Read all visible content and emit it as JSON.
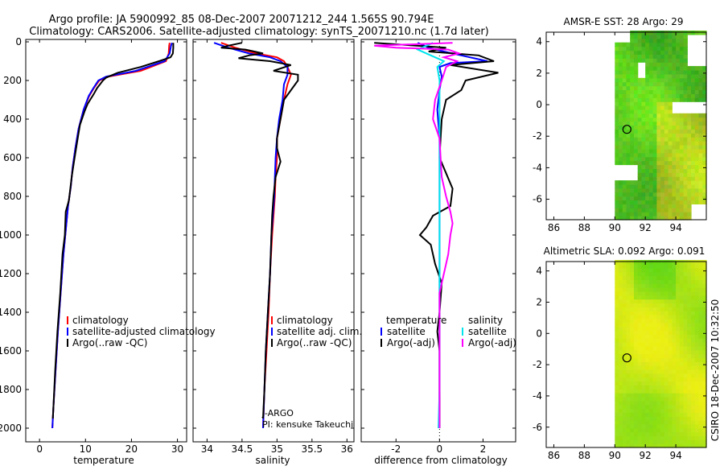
{
  "header": {
    "line1": "Argo profile: JA 5900992_85 08-Dec-2007 20071212_244 1.565S 90.794E",
    "line2": "Climatology: CARS2006. Satellite-adjusted climatology: synTS_20071210.nc (1.7d later)"
  },
  "colors": {
    "climatology": "#ff0000",
    "satellite": "#0000ff",
    "argo": "#000000",
    "sal_satellite": "#00e5ee",
    "sal_argo": "#ff00ff"
  },
  "chart_data": [
    {
      "type": "line",
      "id": "temperature",
      "xlabel": "temperature",
      "xlim": [
        -3,
        32
      ],
      "ylim": [
        0,
        2050
      ],
      "xticks": [
        0,
        10,
        20,
        30
      ],
      "yticks": [
        0,
        200,
        400,
        600,
        800,
        1000,
        1200,
        1400,
        1600,
        1800,
        2000
      ],
      "legend": [
        "climatology",
        "satellite-adjusted climatology",
        "Argo(..raw -QC)"
      ],
      "legend_colors": [
        "#ff0000",
        "#0000ff",
        "#000000"
      ],
      "series": [
        {
          "name": "climatology",
          "color": "#ff0000",
          "points": [
            [
              28.3,
              5
            ],
            [
              28.2,
              20
            ],
            [
              28.1,
              60
            ],
            [
              27.5,
              100
            ],
            [
              22,
              150
            ],
            [
              15,
              180
            ],
            [
              13,
              200
            ],
            [
              11.8,
              240
            ],
            [
              10.8,
              280
            ],
            [
              9.6,
              350
            ],
            [
              8.5,
              450
            ],
            [
              7.8,
              550
            ],
            [
              7.2,
              650
            ],
            [
              6.8,
              750
            ],
            [
              6.2,
              850
            ],
            [
              5.8,
              950
            ],
            [
              5.2,
              1100
            ],
            [
              4.6,
              1300
            ],
            [
              4.0,
              1500
            ],
            [
              3.5,
              1700
            ],
            [
              3.0,
              1900
            ],
            [
              2.8,
              2000
            ]
          ]
        },
        {
          "name": "satellite-adjusted climatology",
          "color": "#0000ff",
          "points": [
            [
              28.8,
              5
            ],
            [
              28.6,
              20
            ],
            [
              28.3,
              60
            ],
            [
              27.2,
              100
            ],
            [
              21,
              150
            ],
            [
              14.5,
              180
            ],
            [
              12.8,
              200
            ],
            [
              11.7,
              240
            ],
            [
              10.7,
              280
            ],
            [
              9.6,
              350
            ],
            [
              8.5,
              450
            ],
            [
              7.8,
              550
            ],
            [
              7.2,
              650
            ],
            [
              6.8,
              750
            ],
            [
              6.2,
              850
            ],
            [
              5.8,
              950
            ],
            [
              5.2,
              1100
            ],
            [
              4.6,
              1300
            ],
            [
              4.0,
              1500
            ],
            [
              3.5,
              1700
            ],
            [
              3.0,
              1900
            ],
            [
              2.8,
              2000
            ]
          ]
        },
        {
          "name": "Argo(..raw -QC)",
          "color": "#000000",
          "points": [
            [
              29.1,
              5
            ],
            [
              29.1,
              30
            ],
            [
              29.0,
              60
            ],
            [
              28.5,
              80
            ],
            [
              26,
              100
            ],
            [
              22,
              130
            ],
            [
              17,
              160
            ],
            [
              14.5,
              185
            ],
            [
              13.8,
              200
            ],
            [
              12.5,
              240
            ],
            [
              11.8,
              270
            ],
            [
              10.5,
              320
            ],
            [
              9.8,
              360
            ],
            [
              8.8,
              430
            ],
            [
              8.3,
              500
            ],
            [
              7.5,
              620
            ],
            [
              7.0,
              700
            ],
            [
              6.4,
              820
            ],
            [
              5.7,
              880
            ],
            [
              5.5,
              1000
            ],
            [
              5.0,
              1100
            ],
            [
              4.5,
              1300
            ],
            [
              3.9,
              1500
            ],
            [
              3.4,
              1700
            ],
            [
              3.0,
              1900
            ],
            [
              2.9,
              1950
            ]
          ]
        }
      ]
    },
    {
      "type": "line",
      "id": "salinity",
      "xlabel": "salinity",
      "xlim": [
        33.8,
        36.1
      ],
      "ylim": [
        0,
        2050
      ],
      "xticks": [
        34,
        34.5,
        35,
        35.5,
        36
      ],
      "xtick_labels": [
        "34",
        "34.5",
        "35",
        "35.5",
        "36"
      ],
      "legend": [
        "climatology",
        "satellite adj. clim.",
        "Argo(..raw -QC)"
      ],
      "legend_colors": [
        "#ff0000",
        "#0000ff",
        "#000000"
      ],
      "annotations": [
        "J-ARGO",
        "PI: kensuke Takeuchi"
      ],
      "series": [
        {
          "name": "climatology",
          "color": "#ff0000",
          "points": [
            [
              34.2,
              5
            ],
            [
              34.4,
              30
            ],
            [
              34.7,
              60
            ],
            [
              35.0,
              80
            ],
            [
              35.1,
              100
            ],
            [
              35.15,
              130
            ],
            [
              35.2,
              170
            ],
            [
              35.15,
              220
            ],
            [
              35.1,
              300
            ],
            [
              35.05,
              400
            ],
            [
              35.0,
              500
            ],
            [
              35.0,
              600
            ],
            [
              34.98,
              700
            ],
            [
              34.97,
              800
            ],
            [
              34.95,
              900
            ],
            [
              34.93,
              1000
            ],
            [
              34.9,
              1200
            ],
            [
              34.88,
              1400
            ],
            [
              34.85,
              1600
            ],
            [
              34.82,
              1800
            ],
            [
              34.8,
              2000
            ]
          ]
        },
        {
          "name": "satellite adj. clim.",
          "color": "#0000ff",
          "points": [
            [
              34.1,
              5
            ],
            [
              34.3,
              30
            ],
            [
              34.6,
              60
            ],
            [
              34.9,
              80
            ],
            [
              35.05,
              100
            ],
            [
              35.15,
              130
            ],
            [
              35.15,
              170
            ],
            [
              35.1,
              220
            ],
            [
              35.08,
              300
            ],
            [
              35.03,
              400
            ],
            [
              35.0,
              500
            ],
            [
              34.98,
              600
            ],
            [
              34.97,
              700
            ],
            [
              34.96,
              800
            ],
            [
              34.94,
              900
            ],
            [
              34.92,
              1000
            ],
            [
              34.9,
              1200
            ],
            [
              34.87,
              1400
            ],
            [
              34.84,
              1600
            ],
            [
              34.82,
              1800
            ],
            [
              34.8,
              2000
            ]
          ]
        },
        {
          "name": "Argo(..raw -QC)",
          "color": "#000000",
          "points": [
            [
              34.5,
              5
            ],
            [
              34.3,
              20
            ],
            [
              34.2,
              30
            ],
            [
              34.55,
              40
            ],
            [
              34.8,
              60
            ],
            [
              34.6,
              70
            ],
            [
              34.45,
              85
            ],
            [
              34.9,
              100
            ],
            [
              35.2,
              120
            ],
            [
              34.95,
              150
            ],
            [
              35.3,
              170
            ],
            [
              35.3,
              200
            ],
            [
              35.2,
              250
            ],
            [
              35.1,
              300
            ],
            [
              35.05,
              400
            ],
            [
              35.0,
              500
            ],
            [
              35.0,
              550
            ],
            [
              35.05,
              620
            ],
            [
              34.98,
              700
            ],
            [
              34.95,
              800
            ],
            [
              34.93,
              900
            ],
            [
              34.92,
              1000
            ],
            [
              34.9,
              1200
            ],
            [
              34.87,
              1400
            ],
            [
              34.84,
              1600
            ],
            [
              34.82,
              1800
            ],
            [
              34.8,
              1950
            ]
          ]
        }
      ]
    },
    {
      "type": "line",
      "id": "difference",
      "xlabel": "difference from climatology",
      "xlim": [
        -3.6,
        3.5
      ],
      "ylim": [
        0,
        2050
      ],
      "xticks": [
        -2,
        0,
        2
      ],
      "legend_temperature_title": "temperature",
      "legend_temperature": [
        "satellite",
        "Argo(-adj)"
      ],
      "legend_temperature_colors": [
        "#0000ff",
        "#000000"
      ],
      "legend_salinity_title": "salinity",
      "legend_salinity": [
        "satellite",
        "Argo(-adj)"
      ],
      "legend_salinity_colors": [
        "#00e5ee",
        "#ff00ff"
      ],
      "series": [
        {
          "name": "temperature satellite",
          "color": "#0000ff",
          "points": [
            [
              -1.0,
              5
            ],
            [
              -0.5,
              30
            ],
            [
              0.2,
              50
            ],
            [
              1.0,
              70
            ],
            [
              2.2,
              100
            ],
            [
              0.5,
              110
            ],
            [
              0.0,
              130
            ],
            [
              0.1,
              180
            ],
            [
              0.0,
              250
            ],
            [
              -0.1,
              350
            ],
            [
              0.0,
              500
            ],
            [
              0.0,
              700
            ],
            [
              0.0,
              900
            ],
            [
              0.0,
              1100
            ],
            [
              0.0,
              1300
            ],
            [
              0.0,
              1500
            ],
            [
              0.0,
              1700
            ],
            [
              0.0,
              2000
            ]
          ]
        },
        {
          "name": "temperature Argo(-adj)",
          "color": "#000000",
          "points": [
            [
              -3.0,
              5
            ],
            [
              0.3,
              30
            ],
            [
              -0.5,
              50
            ],
            [
              1.8,
              70
            ],
            [
              2.5,
              100
            ],
            [
              0.5,
              120
            ],
            [
              2.7,
              160
            ],
            [
              1.2,
              200
            ],
            [
              1.0,
              250
            ],
            [
              0.3,
              300
            ],
            [
              0.1,
              400
            ],
            [
              0.05,
              500
            ],
            [
              0.0,
              600
            ],
            [
              0.3,
              680
            ],
            [
              0.6,
              760
            ],
            [
              0.5,
              850
            ],
            [
              -0.3,
              900
            ],
            [
              -0.6,
              960
            ],
            [
              -0.9,
              1000
            ],
            [
              -0.4,
              1050
            ],
            [
              -0.2,
              1150
            ],
            [
              0.1,
              1250
            ],
            [
              0.0,
              1400
            ],
            [
              -0.1,
              1500
            ],
            [
              0.0,
              1600
            ],
            [
              0.0,
              2000
            ]
          ]
        },
        {
          "name": "salinity satellite",
          "color": "#00e5ee",
          "points": [
            [
              -0.3,
              5
            ],
            [
              -1.0,
              40
            ],
            [
              -0.6,
              60
            ],
            [
              -0.2,
              80
            ],
            [
              0.2,
              100
            ],
            [
              -0.1,
              130
            ],
            [
              0.0,
              200
            ],
            [
              0.0,
              400
            ],
            [
              0.0,
              600
            ],
            [
              0.0,
              800
            ],
            [
              0.0,
              1000
            ],
            [
              0.0,
              1200
            ],
            [
              0.0,
              1400
            ],
            [
              0.0,
              1600
            ],
            [
              0.0,
              1800
            ],
            [
              -0.05,
              2000
            ]
          ]
        },
        {
          "name": "salinity Argo(-adj)",
          "color": "#ff00ff",
          "points": [
            [
              0.6,
              5
            ],
            [
              -3.0,
              20
            ],
            [
              -2.0,
              30
            ],
            [
              0.4,
              40
            ],
            [
              0.9,
              60
            ],
            [
              0.2,
              80
            ],
            [
              0.8,
              100
            ],
            [
              0.3,
              130
            ],
            [
              0.1,
              200
            ],
            [
              -0.2,
              300
            ],
            [
              -0.3,
              400
            ],
            [
              0.0,
              500
            ],
            [
              0.05,
              600
            ],
            [
              0.1,
              700
            ],
            [
              0.3,
              800
            ],
            [
              0.5,
              880
            ],
            [
              0.6,
              940
            ],
            [
              0.5,
              1000
            ],
            [
              0.4,
              1100
            ],
            [
              0.2,
              1200
            ],
            [
              0.0,
              1300
            ],
            [
              0.0,
              1500
            ],
            [
              0.0,
              1700
            ],
            [
              0.0,
              2000
            ]
          ]
        }
      ]
    },
    {
      "type": "heatmap",
      "id": "sst-map",
      "title": "AMSR-E SST: 28  Argo: 29",
      "xlim": [
        85.5,
        96
      ],
      "ylim": [
        -7.3,
        4.6
      ],
      "xticks": [
        86,
        88,
        90,
        92,
        94
      ],
      "yticks": [
        4,
        2,
        0,
        -2,
        -4,
        -6
      ],
      "data_lon_min": 90,
      "argo_position": [
        90.794,
        -1.565
      ]
    },
    {
      "type": "heatmap",
      "id": "sla-map",
      "title": "Altimetric SLA: 0.092  Argo: 0.091",
      "xlim": [
        85.5,
        96
      ],
      "ylim": [
        -7.3,
        4.6
      ],
      "xticks": [
        86,
        88,
        90,
        92,
        94
      ],
      "yticks": [
        4,
        2,
        0,
        -2,
        -4,
        -6
      ],
      "data_lon_min": 90,
      "argo_position": [
        90.794,
        -1.565
      ]
    }
  ],
  "footer": {
    "credit": "CSIRO 18-Dec-2007 10:32:50"
  }
}
